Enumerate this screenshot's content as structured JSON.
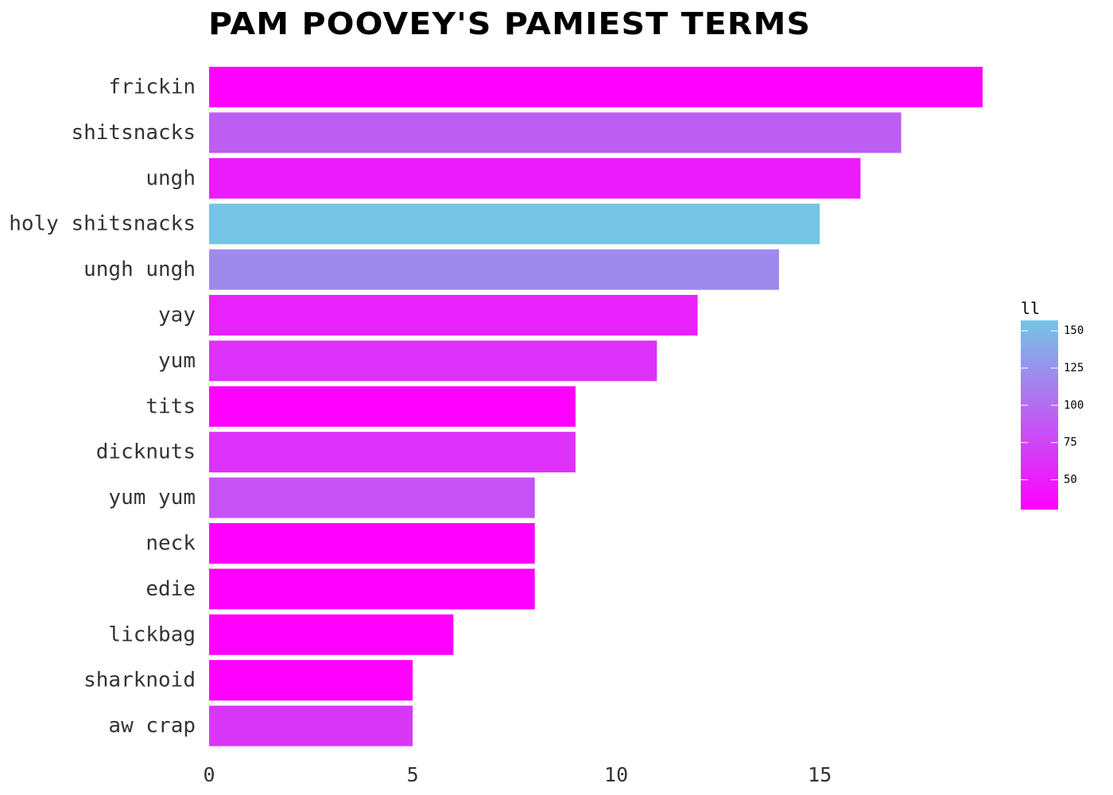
{
  "chart_data": {
    "type": "bar",
    "orientation": "horizontal",
    "title": "Pam Poovey's Pamiest Terms",
    "categories": [
      "frickin",
      "shitsnacks",
      "ungh",
      "holy shitsnacks",
      "ungh ungh",
      "yay",
      "yum",
      "tits",
      "dicknuts",
      "yum yum",
      "neck",
      "edie",
      "lickbag",
      "sharknoid",
      "aw crap"
    ],
    "values": [
      19,
      17,
      16,
      15,
      14,
      12,
      11,
      9,
      9,
      8,
      8,
      8,
      6,
      5,
      5
    ],
    "fill_values": [
      30,
      90,
      48,
      155,
      118,
      52,
      62,
      30,
      62,
      82,
      30,
      30,
      30,
      30,
      65
    ],
    "xlim": [
      0,
      20.5
    ],
    "xticks": [
      0,
      5,
      10,
      15
    ],
    "xtick_labels": [
      "0",
      "5",
      "10",
      "15"
    ],
    "grid": false,
    "legend": {
      "title": "ll",
      "placement": "right",
      "range": [
        30,
        155
      ],
      "ticks": [
        50,
        75,
        100,
        125,
        150
      ],
      "tick_labels": [
        "50",
        "75",
        "100",
        "125",
        "150"
      ],
      "color_low": "#ff00ff",
      "color_high": "#75c4e6"
    }
  }
}
